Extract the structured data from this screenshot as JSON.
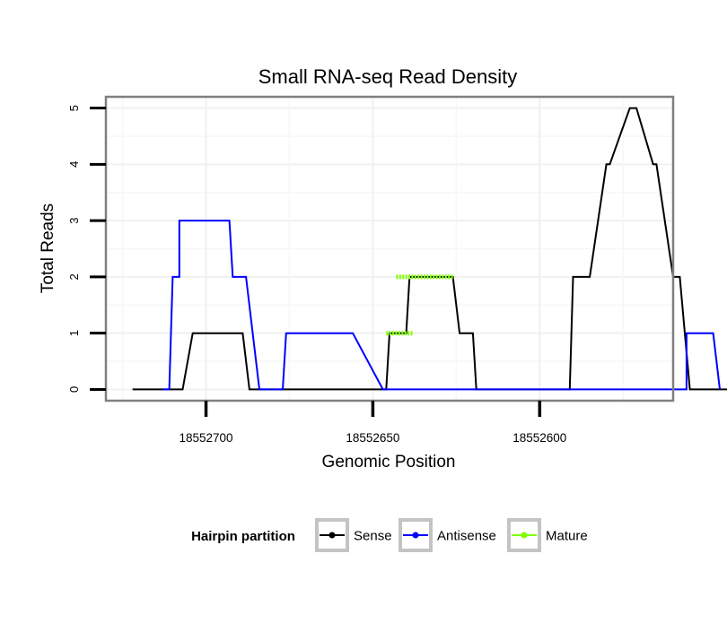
{
  "chart_data": {
    "type": "line",
    "title": "Small RNA-seq Read Density",
    "xlabel": "Genomic Position",
    "ylabel": "Total Reads",
    "x_reversed": true,
    "xlim": [
      18552730,
      18552560
    ],
    "ylim": [
      -0.2,
      5.2
    ],
    "x_ticks": [
      18552700,
      18552650,
      18552600
    ],
    "x_tick_labels": [
      "18552700",
      "18552650",
      "18552600"
    ],
    "y_ticks": [
      0,
      1,
      2,
      3,
      4,
      5
    ],
    "y_tick_labels": [
      "0",
      "1",
      "2",
      "3",
      "4",
      "5"
    ],
    "grid": true,
    "legend": {
      "title": "Hairpin partition",
      "position": "bottom",
      "entries": [
        "Sense",
        "Antisense",
        "Mature"
      ]
    },
    "series": [
      {
        "name": "Sense",
        "color": "#000000",
        "x": [
          18552722,
          18552707,
          18552704,
          18552689,
          18552687,
          18552674,
          18552670,
          18552646,
          18552645,
          18552644,
          18552640,
          18552639,
          18552626,
          18552624,
          18552620,
          18552619,
          18552618,
          18552591,
          18552590,
          18552586,
          18552585,
          18552580,
          18552579,
          18552573,
          18552571,
          18552566,
          18552565,
          18552560,
          18552558,
          18552555,
          18552554,
          18552553,
          18552549,
          18552548,
          18552538
        ],
        "y": [
          0,
          0,
          1,
          1,
          0,
          0,
          0,
          0,
          1,
          1,
          1,
          2,
          2,
          1,
          1,
          0,
          0,
          0,
          2,
          2,
          2,
          4,
          4,
          5,
          5,
          4,
          4,
          2,
          2,
          0,
          0,
          0,
          0,
          0,
          0
        ]
      },
      {
        "name": "Antisense",
        "color": "#0000ff",
        "x": [
          18552713,
          18552711,
          18552710,
          18552708,
          18552708,
          18552693,
          18552692,
          18552689,
          18552688,
          18552684,
          18552680,
          18552677,
          18552676,
          18552656,
          18552647,
          18552598,
          18552593,
          18552582,
          18552580,
          18552556,
          18552556,
          18552552,
          18552548,
          18552546
        ],
        "y": [
          0,
          0,
          2,
          2,
          3,
          3,
          2,
          2,
          2,
          0,
          0,
          0,
          1,
          1,
          0,
          0,
          0,
          0,
          0,
          0,
          1,
          1,
          1,
          0
        ]
      },
      {
        "name": "Mature",
        "color": "#7fff00",
        "segments": [
          {
            "x": [
              18552646,
              18552638
            ],
            "y": [
              1,
              1
            ]
          },
          {
            "x": [
              18552643,
              18552626
            ],
            "y": [
              2,
              2
            ]
          }
        ]
      }
    ]
  }
}
